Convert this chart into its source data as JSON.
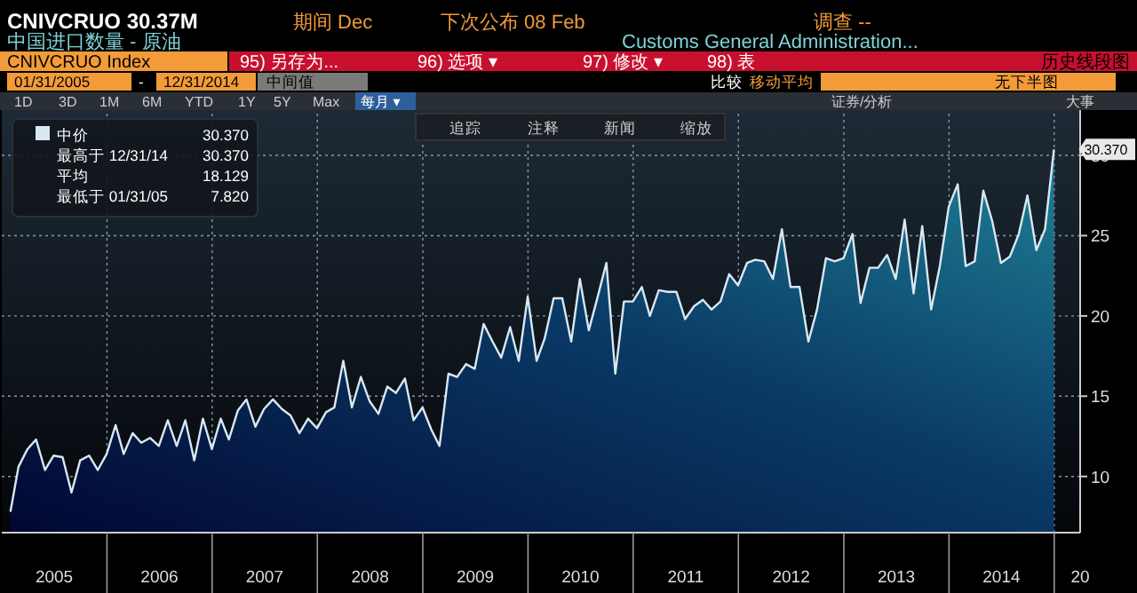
{
  "chart_data": {
    "type": "area",
    "title": "中国进口数量 - 原油",
    "subtitle": "Customs General Administration...",
    "x": [
      "2005-01-31",
      "2005-02-28",
      "2005-03-31",
      "2005-04-30",
      "2005-05-31",
      "2005-06-30",
      "2005-07-31",
      "2005-08-31",
      "2005-09-30",
      "2005-10-31",
      "2005-11-30",
      "2005-12-31",
      "2006-01-31",
      "2006-02-28",
      "2006-03-31",
      "2006-04-30",
      "2006-05-31",
      "2006-06-30",
      "2006-07-31",
      "2006-08-31",
      "2006-09-30",
      "2006-10-31",
      "2006-11-30",
      "2006-12-31",
      "2007-01-31",
      "2007-02-28",
      "2007-03-31",
      "2007-04-30",
      "2007-05-31",
      "2007-06-30",
      "2007-07-31",
      "2007-08-31",
      "2007-09-30",
      "2007-10-31",
      "2007-11-30",
      "2007-12-31",
      "2008-01-31",
      "2008-02-29",
      "2008-03-31",
      "2008-04-30",
      "2008-05-31",
      "2008-06-30",
      "2008-07-31",
      "2008-08-31",
      "2008-09-30",
      "2008-10-31",
      "2008-11-30",
      "2008-12-31",
      "2009-01-31",
      "2009-02-28",
      "2009-03-31",
      "2009-04-30",
      "2009-05-31",
      "2009-06-30",
      "2009-07-31",
      "2009-08-31",
      "2009-09-30",
      "2009-10-31",
      "2009-11-30",
      "2009-12-31",
      "2010-01-31",
      "2010-02-28",
      "2010-03-31",
      "2010-04-30",
      "2010-05-31",
      "2010-06-30",
      "2010-07-31",
      "2010-08-31",
      "2010-09-30",
      "2010-10-31",
      "2010-11-30",
      "2010-12-31",
      "2011-01-31",
      "2011-02-28",
      "2011-03-31",
      "2011-04-30",
      "2011-05-31",
      "2011-06-30",
      "2011-07-31",
      "2011-08-31",
      "2011-09-30",
      "2011-10-31",
      "2011-11-30",
      "2011-12-31",
      "2012-01-31",
      "2012-02-29",
      "2012-03-31",
      "2012-04-30",
      "2012-05-31",
      "2012-06-30",
      "2012-07-31",
      "2012-08-31",
      "2012-09-30",
      "2012-10-31",
      "2012-11-30",
      "2012-12-31",
      "2013-01-31",
      "2013-02-28",
      "2013-03-31",
      "2013-04-30",
      "2013-05-31",
      "2013-06-30",
      "2013-07-31",
      "2013-08-31",
      "2013-09-30",
      "2013-10-31",
      "2013-11-30",
      "2013-12-31",
      "2014-01-31",
      "2014-02-28",
      "2014-03-31",
      "2014-04-30",
      "2014-05-31",
      "2014-06-30",
      "2014-07-31",
      "2014-08-31",
      "2014-09-30",
      "2014-10-31",
      "2014-11-30",
      "2014-12-31"
    ],
    "series": [
      {
        "name": "中价",
        "color": "#d8e8f2",
        "values": [
          7.8,
          10.6,
          11.7,
          12.3,
          10.4,
          11.3,
          11.2,
          9.0,
          11.0,
          11.3,
          10.4,
          11.4,
          13.2,
          11.4,
          12.7,
          12.1,
          12.4,
          11.9,
          13.5,
          11.9,
          13.5,
          11.0,
          13.6,
          11.7,
          13.6,
          12.3,
          14.1,
          14.8,
          13.1,
          14.2,
          14.8,
          14.2,
          13.8,
          12.7,
          13.6,
          13.0,
          14.0,
          14.3,
          17.2,
          14.3,
          16.2,
          14.7,
          13.9,
          15.6,
          15.2,
          16.1,
          13.5,
          14.3,
          12.9,
          11.9,
          16.4,
          16.2,
          17.0,
          16.7,
          19.5,
          18.4,
          17.4,
          19.3,
          17.2,
          21.2,
          17.2,
          18.6,
          21.1,
          21.1,
          18.4,
          22.3,
          19.1,
          21.2,
          23.3,
          16.4,
          20.9,
          20.9,
          21.8,
          20.0,
          21.6,
          21.5,
          21.5,
          19.8,
          20.6,
          21.0,
          20.4,
          20.9,
          22.6,
          21.9,
          23.3,
          23.5,
          23.4,
          22.3,
          25.4,
          21.8,
          21.8,
          18.4,
          20.4,
          23.6,
          23.4,
          23.6,
          25.1,
          20.8,
          23.0,
          23.0,
          23.8,
          22.3,
          26.0,
          21.4,
          25.6,
          20.4,
          23.1,
          26.8,
          28.2,
          23.1,
          23.4,
          27.8,
          25.9,
          23.3,
          23.7,
          25.1,
          27.5,
          24.1,
          25.4,
          30.37
        ]
      }
    ],
    "xlim": [
      "2005-01-01",
      "2015-04-01"
    ],
    "xticks": [
      {
        "value": "2005-07-02",
        "label": "2005"
      },
      {
        "value": "2006-07-02",
        "label": "2006"
      },
      {
        "value": "2007-07-02",
        "label": "2007"
      },
      {
        "value": "2008-07-02",
        "label": "2008"
      },
      {
        "value": "2009-07-02",
        "label": "2009"
      },
      {
        "value": "2010-07-02",
        "label": "2010"
      },
      {
        "value": "2011-07-02",
        "label": "2011"
      },
      {
        "value": "2012-07-02",
        "label": "2012"
      },
      {
        "value": "2013-07-02",
        "label": "2013"
      },
      {
        "value": "2014-07-02",
        "label": "2014"
      },
      {
        "value": "2015-04-01",
        "label": "20"
      }
    ],
    "ylim": [
      6.5,
      32.6
    ],
    "yticks": [
      10,
      15,
      20,
      25,
      30
    ],
    "grid": true,
    "legend": "top left",
    "annotations": [
      "CNIVCRUO 30.37M",
      "期间 Dec",
      "下次公布 08 Feb",
      "调查 --",
      "CNIVCRUO Index",
      "95) 另存为...",
      "96) 选项 ▾",
      "97) 修改 ▾",
      "98) 表",
      "历史线段图",
      "01/31/2005",
      "-",
      "12/31/2014",
      "中间值",
      "比较",
      "移动平均",
      "无下半图",
      "1D",
      "3D",
      "1M",
      "6M",
      "YTD",
      "1Y",
      "5Y",
      "Max",
      "每月 ▾",
      "证券/分析",
      "大事",
      "追踪",
      "注释",
      "新闻",
      "缩放",
      "30.370",
      "最高于 12/31/14 30.370",
      "平均 18.129",
      "最低于 01/31/05 7.820",
      {
        "text": "30.370",
        "x": "2014-12-31",
        "y": 30.37
      }
    ]
  }
}
